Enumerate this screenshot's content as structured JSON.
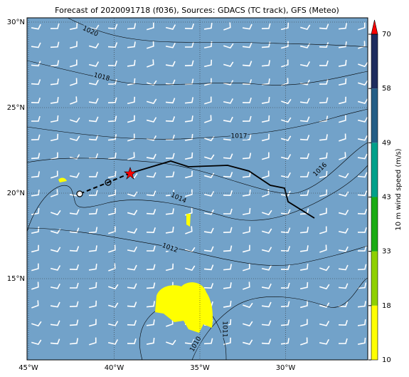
{
  "title": "Forecast of 2020091718 (f036), Sources: GDACS (TC track), GFS (Meteo)",
  "map": {
    "lon_ticks": [
      {
        "value": -45,
        "label": "45°W"
      },
      {
        "value": -40,
        "label": "40°W"
      },
      {
        "value": -35,
        "label": "35°W"
      },
      {
        "value": -30,
        "label": "30°W"
      }
    ],
    "lat_ticks": [
      {
        "value": 30,
        "label": "30°N"
      },
      {
        "value": 25,
        "label": "25°N"
      },
      {
        "value": 20,
        "label": "20°N"
      },
      {
        "value": 15,
        "label": "15°N"
      }
    ],
    "isobar_labels": [
      1020,
      1018,
      1017,
      1016,
      1014,
      1012,
      1011,
      1010
    ]
  },
  "colorbar": {
    "label": "10 m wind speed (m/s)",
    "ticks": [
      10,
      18,
      33,
      43,
      49,
      58,
      70
    ],
    "colors": [
      "#ffff00",
      "#8fd000",
      "#1aab14",
      "#00a08a",
      "#245e86",
      "#1e2c5e"
    ]
  }
}
